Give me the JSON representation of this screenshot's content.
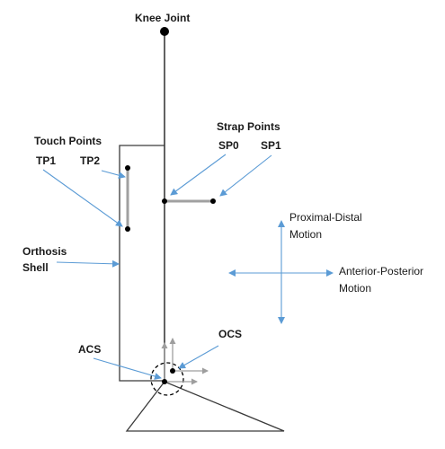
{
  "labels": {
    "knee_joint": "Knee Joint",
    "strap_points": "Strap Points",
    "sp0": "SP0",
    "sp1": "SP1",
    "touch_points": "Touch Points",
    "tp1": "TP1",
    "tp2": "TP2",
    "orthosis_shell_line1": "Orthosis",
    "orthosis_shell_line2": "Shell",
    "proximal_distal_line1": "Proximal-Distal",
    "proximal_distal_line2": "Motion",
    "anterior_posterior_line1": "Anterior-Posterior",
    "anterior_posterior_line2": "Motion",
    "acs": "ACS",
    "ocs": "OCS"
  },
  "colors": {
    "line": "#3a3a3a",
    "arrow_blue": "#5b9bd5",
    "segment_gray": "#a0a0a0",
    "axis_gray": "#9e9e9e",
    "point": "#000000"
  }
}
